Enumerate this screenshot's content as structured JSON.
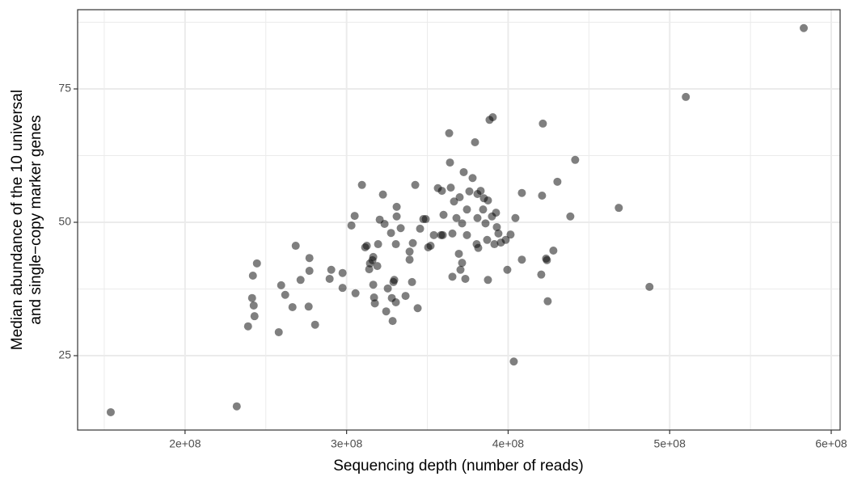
{
  "chart_data": {
    "type": "scatter",
    "xlabel": "Sequencing depth (number of reads)",
    "ylabel": [
      "Median abundance of the 10 universal",
      "and single−copy marker genes"
    ],
    "xlim": [
      133500000,
      605500000
    ],
    "ylim": [
      11.06,
      89.85
    ],
    "xticks": [
      {
        "value": 200000000,
        "label": "2e+08"
      },
      {
        "value": 300000000,
        "label": "3e+08"
      },
      {
        "value": 400000000,
        "label": "4e+08"
      },
      {
        "value": 500000000,
        "label": "5e+08"
      },
      {
        "value": 600000000,
        "label": "6e+08"
      }
    ],
    "xminor_ticks": [
      150000000,
      250000000,
      350000000,
      450000000,
      550000000
    ],
    "yticks": [
      25,
      50,
      75
    ],
    "yminor_ticks": [
      37.5,
      62.5,
      87.5
    ],
    "grid": true,
    "color": "#000000",
    "alpha": 0.5,
    "x": [
      154000000,
      232000000,
      239000000,
      241500000,
      242000000,
      243000000,
      242500000,
      244500000,
      258000000,
      259500000,
      262000000,
      266500000,
      268500000,
      271500000,
      276500000,
      277000000,
      277000000,
      280500000,
      289500000,
      290500000,
      297500000,
      297500000,
      305500000,
      303000000,
      305000000,
      309500000,
      311500000,
      312500000,
      314000000,
      314500000,
      316000000,
      316500000,
      317500000,
      317000000,
      316500000,
      319000000,
      319500000,
      320500000,
      322500000,
      323500000,
      324500000,
      325500000,
      327500000,
      328000000,
      328500000,
      329500000,
      329000000,
      330500000,
      330500000,
      331000000,
      331000000,
      333500000,
      336500000,
      339000000,
      339000000,
      340500000,
      341000000,
      342500000,
      344000000,
      345500000,
      347500000,
      349000000,
      350500000,
      352000000,
      354000000,
      356500000,
      358500000,
      359000000,
      360000000,
      359500000,
      363500000,
      364000000,
      364500000,
      365500000,
      365500000,
      366500000,
      368000000,
      369500000,
      370000000,
      370500000,
      371500000,
      371500000,
      372500000,
      373500000,
      374500000,
      374500000,
      376000000,
      378000000,
      379500000,
      380500000,
      381000000,
      381000000,
      381500000,
      383000000,
      384500000,
      385000000,
      386000000,
      387000000,
      387500000,
      387500000,
      388500000,
      390000000,
      390500000,
      391500000,
      392500000,
      393000000,
      394000000,
      395500000,
      398500000,
      399500000,
      401500000,
      403500000,
      404500000,
      408500000,
      408500000,
      421000000,
      420500000,
      421500000,
      423500000,
      424000000,
      424500000,
      428000000,
      430500000,
      438500000,
      441500000,
      468500000,
      487500000,
      510000000,
      583000000
    ],
    "y": [
      14.4,
      15.5,
      30.5,
      35.8,
      40.0,
      32.4,
      34.4,
      42.3,
      29.4,
      38.2,
      36.4,
      34.1,
      45.6,
      39.2,
      34.2,
      43.3,
      40.9,
      30.8,
      39.4,
      41.1,
      37.7,
      40.5,
      36.7,
      49.4,
      51.2,
      57.0,
      45.3,
      45.6,
      41.2,
      42.3,
      42.9,
      43.5,
      34.8,
      35.9,
      38.3,
      41.8,
      45.9,
      50.5,
      55.2,
      49.7,
      33.3,
      37.6,
      48.0,
      35.8,
      31.5,
      39.2,
      38.8,
      35.0,
      45.9,
      52.9,
      51.1,
      48.9,
      36.2,
      44.5,
      43.0,
      38.8,
      46.1,
      57.0,
      33.9,
      48.8,
      50.6,
      50.6,
      45.3,
      45.6,
      47.6,
      56.4,
      47.6,
      55.9,
      51.4,
      47.6,
      66.7,
      61.2,
      56.5,
      47.9,
      39.8,
      53.9,
      50.8,
      44.1,
      54.7,
      41.1,
      42.4,
      49.8,
      59.4,
      39.4,
      47.6,
      52.4,
      55.8,
      58.3,
      65.0,
      45.9,
      50.8,
      55.3,
      45.2,
      55.9,
      52.4,
      54.5,
      49.8,
      46.7,
      39.2,
      54.1,
      69.2,
      51.1,
      69.7,
      45.9,
      51.8,
      49.1,
      47.9,
      46.2,
      46.7,
      41.1,
      47.7,
      23.9,
      50.8,
      43.0,
      55.5,
      55.0,
      40.2,
      68.5,
      43.2,
      42.9,
      35.2,
      44.7,
      57.6,
      51.1,
      61.7,
      52.7,
      37.9,
      73.5,
      86.4
    ]
  }
}
